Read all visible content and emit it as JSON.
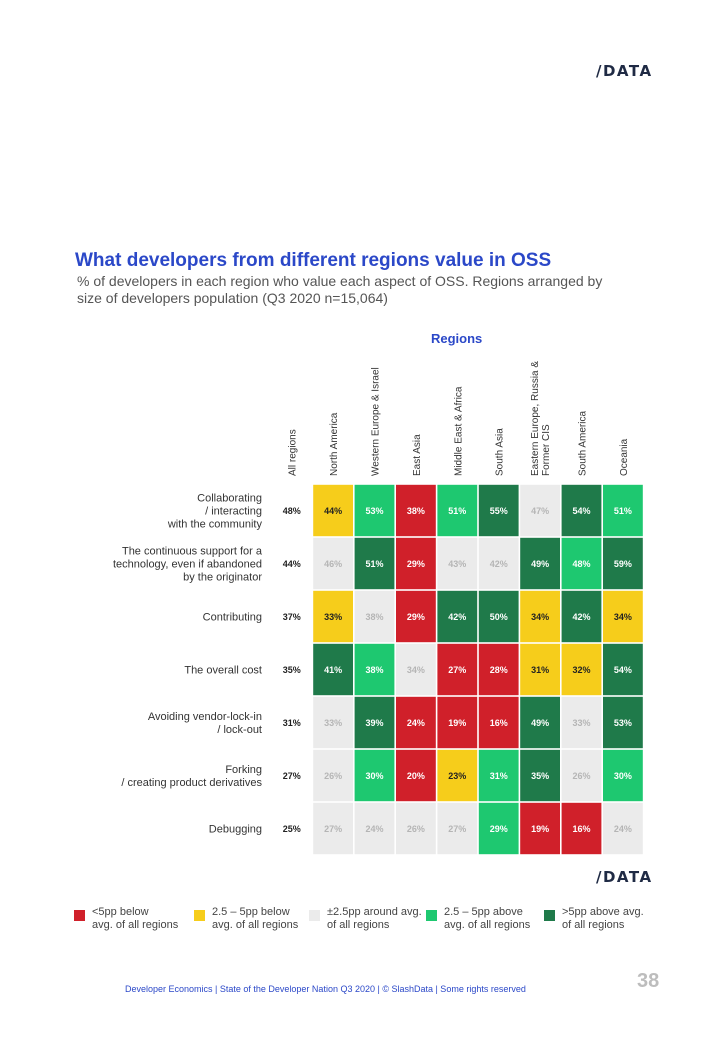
{
  "header": {
    "logo_text": "/DATA"
  },
  "footer": {
    "text": "Developer Economics | State of the Developer Nation Q3 2020 | © SlashData | Some rights reserved",
    "page_number": "38"
  },
  "colors": {
    "red": "#d0202a",
    "yellow": "#f6cd1b",
    "grey": "#ebebeb",
    "lightgreen": "#1ec870",
    "darkgreen": "#1f7a4a",
    "title": "#2b48c8",
    "white": "#ffffff"
  },
  "chart_data": {
    "type": "heatmap",
    "title": "What developers from different regions value in OSS",
    "subtitle": "% of developers in each region who value each aspect of OSS. Regions arranged by size of developers population (Q3 2020 n=15,064)",
    "column_group_label": "Regions",
    "columns": [
      "All regions",
      "North America",
      "Western Europe & Israel",
      "East Asia",
      "Middle East & Africa",
      "South Asia",
      "Eastern Europe, Russia & Former CIS",
      "South America",
      "Oceania"
    ],
    "rows": [
      {
        "label": "Collaborating\n/ interacting\nwith the community",
        "values": [
          "48%",
          "44%",
          "53%",
          "38%",
          "51%",
          "55%",
          "47%",
          "54%",
          "51%"
        ],
        "categories": [
          "none",
          "yellow",
          "lightgreen",
          "red",
          "lightgreen",
          "darkgreen",
          "grey",
          "darkgreen",
          "lightgreen"
        ]
      },
      {
        "label": "The continuous support for a\ntechnology, even if abandoned\nby the originator",
        "values": [
          "44%",
          "46%",
          "51%",
          "29%",
          "43%",
          "42%",
          "49%",
          "48%",
          "59%"
        ],
        "categories": [
          "none",
          "grey",
          "darkgreen",
          "red",
          "grey",
          "grey",
          "darkgreen",
          "lightgreen",
          "darkgreen"
        ]
      },
      {
        "label": "Contributing",
        "values": [
          "37%",
          "33%",
          "38%",
          "29%",
          "42%",
          "50%",
          "34%",
          "42%",
          "34%"
        ],
        "categories": [
          "none",
          "yellow",
          "grey",
          "red",
          "darkgreen",
          "darkgreen",
          "yellow",
          "darkgreen",
          "yellow"
        ]
      },
      {
        "label": "The overall cost",
        "values": [
          "35%",
          "41%",
          "38%",
          "34%",
          "27%",
          "28%",
          "31%",
          "32%",
          "54%"
        ],
        "categories": [
          "none",
          "darkgreen",
          "lightgreen",
          "grey",
          "red",
          "red",
          "yellow",
          "yellow",
          "darkgreen"
        ]
      },
      {
        "label": "Avoiding vendor-lock-in\n/ lock-out",
        "values": [
          "31%",
          "33%",
          "39%",
          "24%",
          "19%",
          "16%",
          "49%",
          "33%",
          "53%"
        ],
        "categories": [
          "none",
          "grey",
          "darkgreen",
          "red",
          "red",
          "red",
          "darkgreen",
          "grey",
          "darkgreen"
        ]
      },
      {
        "label": "Forking\n/ creating product derivatives",
        "values": [
          "27%",
          "26%",
          "30%",
          "20%",
          "23%",
          "31%",
          "35%",
          "26%",
          "30%"
        ],
        "categories": [
          "none",
          "grey",
          "lightgreen",
          "red",
          "yellow",
          "lightgreen",
          "darkgreen",
          "grey",
          "lightgreen"
        ]
      },
      {
        "label": "Debugging",
        "values": [
          "25%",
          "27%",
          "24%",
          "26%",
          "27%",
          "29%",
          "19%",
          "16%",
          "24%"
        ],
        "categories": [
          "none",
          "grey",
          "grey",
          "grey",
          "grey",
          "lightgreen",
          "red",
          "red",
          "grey"
        ]
      }
    ],
    "legend": [
      {
        "category": "red",
        "text": "<5pp below\navg. of all regions"
      },
      {
        "category": "yellow",
        "text": "2.5 – 5pp below\navg. of all regions"
      },
      {
        "category": "grey",
        "text": "±2.5pp around avg.\nof all regions"
      },
      {
        "category": "lightgreen",
        "text": "2.5 – 5pp above\navg. of all regions"
      },
      {
        "category": "darkgreen",
        "text": ">5pp above avg.\nof all regions"
      }
    ]
  }
}
